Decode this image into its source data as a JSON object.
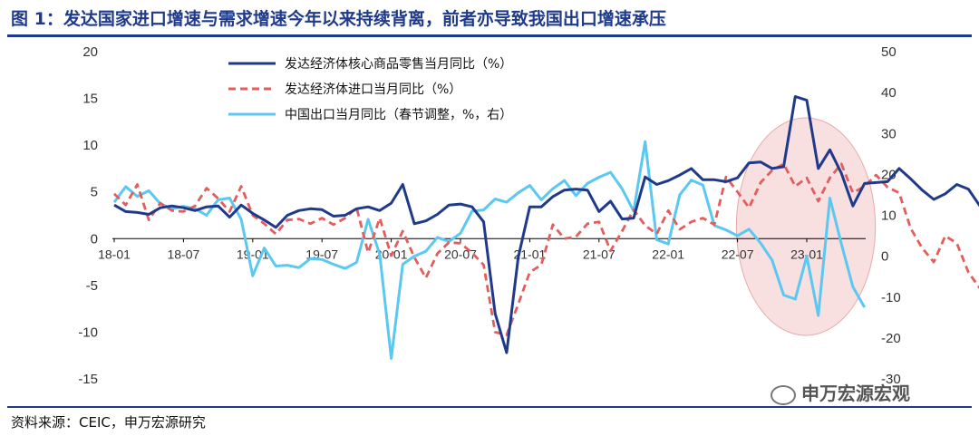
{
  "header": {
    "title": "图 1：发达国家进口增速与需求增速今年以来持续背离，前者亦导致我国出口增速承压"
  },
  "footer": {
    "source": "资料来源：CEIC，申万宏源研究",
    "watermark": "申万宏源宏观"
  },
  "chart_data": {
    "type": "line",
    "x_start": "2018-01",
    "x_ticks": [
      "18-01",
      "18-07",
      "19-01",
      "19-07",
      "20-01",
      "20-07",
      "21-01",
      "21-07",
      "22-01",
      "22-07",
      "23-01"
    ],
    "y_left": {
      "min": -15,
      "max": 20,
      "ticks": [
        20,
        15,
        10,
        5,
        0,
        -5,
        -10,
        -15
      ]
    },
    "y_right": {
      "min": -30,
      "max": 50,
      "ticks": [
        50,
        40,
        30,
        20,
        10,
        0,
        -10,
        -20,
        -30
      ]
    },
    "legend_placement": "top-left",
    "colors": {
      "core_retail": "#1f3a8a",
      "imports": "#e35d5d",
      "china_exports": "#5bc8f2",
      "highlight": "#f2c6c6"
    },
    "highlight_region": {
      "from": "2022-08",
      "to": "2023-06",
      "note": "shaded ellipse"
    },
    "series": [
      {
        "name": "发达经济体核心商品零售当月同比（%）",
        "key": "core_retail",
        "axis": "left",
        "style": "solid",
        "values": [
          3.6,
          2.9,
          2.8,
          2.6,
          3.3,
          3.5,
          3.3,
          3.0,
          3.4,
          3.5,
          2.3,
          3.6,
          2.7,
          2.0,
          1.2,
          2.5,
          3.0,
          3.2,
          3.1,
          2.4,
          2.5,
          3.2,
          3.4,
          3.0,
          3.8,
          5.8,
          1.6,
          1.9,
          2.6,
          3.6,
          3.7,
          3.4,
          1.8,
          -8.0,
          -12.2,
          -2.0,
          3.4,
          3.4,
          4.5,
          5.2,
          5.3,
          5.2,
          2.9,
          4.0,
          2.1,
          2.2,
          6.6,
          5.8,
          6.2,
          6.8,
          7.5,
          6.3,
          6.3,
          6.1,
          6.5,
          8.1,
          8.2,
          7.5,
          7.7,
          15.2,
          14.8,
          7.5,
          9.5,
          7.0,
          3.5,
          5.9,
          6.0,
          6.1,
          7.5,
          6.4,
          5.2,
          4.2,
          4.8,
          5.8,
          5.3,
          3.5,
          3.3
        ]
      },
      {
        "name": "发达经济体进口当月同比（%）",
        "key": "imports",
        "axis": "left",
        "style": "dashed",
        "values": [
          4.8,
          3.6,
          5.8,
          2.0,
          3.8,
          3.0,
          2.9,
          3.5,
          5.4,
          4.3,
          2.9,
          5.6,
          2.5,
          1.6,
          0.5,
          2.0,
          2.1,
          1.6,
          2.2,
          1.5,
          2.2,
          3.3,
          -1.5,
          2.2,
          -1.8,
          0.8,
          -2.0,
          -4.2,
          -1.6,
          -0.4,
          -0.5,
          -1.5,
          -2.8,
          -10.0,
          -10.3,
          -7.0,
          -3.6,
          -2.8,
          1.5,
          0.0,
          0.2,
          1.6,
          1.8,
          -1.3,
          0.8,
          3.1,
          1.4,
          0.5,
          3.0,
          1.0,
          1.8,
          2.2,
          1.5,
          6.6,
          5.0,
          3.3,
          6.0,
          7.3,
          8.0,
          5.6,
          6.5,
          4.0,
          6.5,
          8.0,
          4.9,
          5.6,
          6.8,
          5.5,
          4.9,
          1.1,
          -1.0,
          -2.5,
          0.3,
          -0.5,
          -3.6,
          -5.3
        ]
      },
      {
        "name": "中国出口当月同比（春节调整，%，右）",
        "key": "china_exports",
        "axis": "right",
        "style": "solid",
        "values": [
          13.2,
          17.0,
          14.6,
          16.0,
          12.8,
          11.6,
          12.2,
          11.6,
          10.0,
          13.8,
          14.2,
          9.0,
          -4.8,
          2.0,
          -2.4,
          -2.2,
          -2.8,
          -0.6,
          -0.8,
          -2.0,
          -3.0,
          -1.5,
          9.0,
          0.5,
          -25.0,
          -2.0,
          0.0,
          1.2,
          4.6,
          3.6,
          5.6,
          11.0,
          11.3,
          14.0,
          13.2,
          15.5,
          17.3,
          13.8,
          16.5,
          18.5,
          14.8,
          17.8,
          19.3,
          20.5,
          16.5,
          11.0,
          28.0,
          4.0,
          3.0,
          15.0,
          18.6,
          17.4,
          7.5,
          6.4,
          5.0,
          6.6,
          3.2,
          -1.0,
          -9.5,
          -10.5,
          0.0,
          -14.5,
          14.2,
          3.0,
          -7.5,
          -12.5
        ]
      }
    ]
  }
}
